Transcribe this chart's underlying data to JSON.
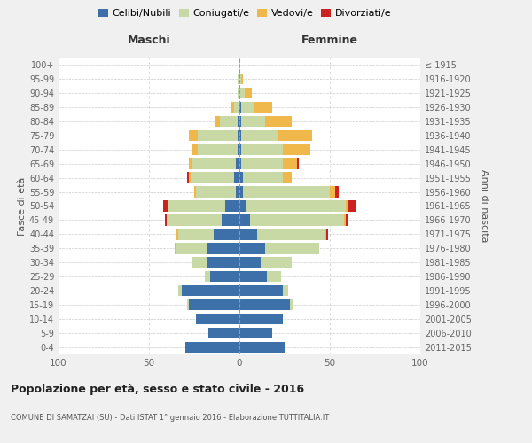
{
  "age_groups": [
    "0-4",
    "5-9",
    "10-14",
    "15-19",
    "20-24",
    "25-29",
    "30-34",
    "35-39",
    "40-44",
    "45-49",
    "50-54",
    "55-59",
    "60-64",
    "65-69",
    "70-74",
    "75-79",
    "80-84",
    "85-89",
    "90-94",
    "95-99",
    "100+"
  ],
  "birth_years": [
    "2011-2015",
    "2006-2010",
    "2001-2005",
    "1996-2000",
    "1991-1995",
    "1986-1990",
    "1981-1985",
    "1976-1980",
    "1971-1975",
    "1966-1970",
    "1961-1965",
    "1956-1960",
    "1951-1955",
    "1946-1950",
    "1941-1945",
    "1936-1940",
    "1931-1935",
    "1926-1930",
    "1921-1925",
    "1916-1920",
    "≤ 1915"
  ],
  "colors": {
    "celibi": "#3d6fa8",
    "coniugati": "#c8d9a5",
    "vedovi": "#f0b84a",
    "divorziati": "#cc2222"
  },
  "maschi": {
    "celibi": [
      30,
      17,
      24,
      28,
      32,
      16,
      18,
      18,
      14,
      10,
      8,
      2,
      3,
      2,
      1,
      1,
      1,
      0,
      0,
      0,
      0
    ],
    "coniugati": [
      0,
      0,
      0,
      1,
      2,
      3,
      8,
      17,
      20,
      30,
      31,
      22,
      24,
      24,
      22,
      22,
      10,
      3,
      1,
      1,
      0
    ],
    "vedovi": [
      0,
      0,
      0,
      0,
      0,
      0,
      0,
      1,
      1,
      0,
      0,
      1,
      1,
      2,
      3,
      5,
      2,
      2,
      0,
      0,
      0
    ],
    "divorziati": [
      0,
      0,
      0,
      0,
      0,
      0,
      0,
      0,
      0,
      1,
      3,
      0,
      1,
      0,
      0,
      0,
      0,
      0,
      0,
      0,
      0
    ]
  },
  "femmine": {
    "celibi": [
      25,
      18,
      24,
      28,
      24,
      15,
      12,
      14,
      10,
      6,
      4,
      2,
      2,
      1,
      1,
      1,
      1,
      1,
      0,
      0,
      0
    ],
    "coniugati": [
      0,
      0,
      0,
      2,
      3,
      8,
      17,
      30,
      37,
      52,
      55,
      48,
      22,
      23,
      23,
      20,
      13,
      7,
      3,
      1,
      0
    ],
    "vedovi": [
      0,
      0,
      0,
      0,
      0,
      0,
      0,
      0,
      1,
      1,
      1,
      3,
      5,
      8,
      15,
      19,
      15,
      10,
      4,
      1,
      0
    ],
    "divorziati": [
      0,
      0,
      0,
      0,
      0,
      0,
      0,
      0,
      1,
      1,
      4,
      2,
      0,
      1,
      0,
      0,
      0,
      0,
      0,
      0,
      0
    ]
  },
  "xlim": 100,
  "title": "Popolazione per età, sesso e stato civile - 2016",
  "subtitle": "COMUNE DI SAMATZAI (SU) - Dati ISTAT 1° gennaio 2016 - Elaborazione TUTTITALIA.IT",
  "ylabel_left": "Fasce di età",
  "ylabel_right": "Anni di nascita",
  "xlabel_left": "Maschi",
  "xlabel_right": "Femmine",
  "bg_color": "#f0f0f0",
  "plot_bg_color": "#ffffff",
  "grid_color": "#cccccc"
}
